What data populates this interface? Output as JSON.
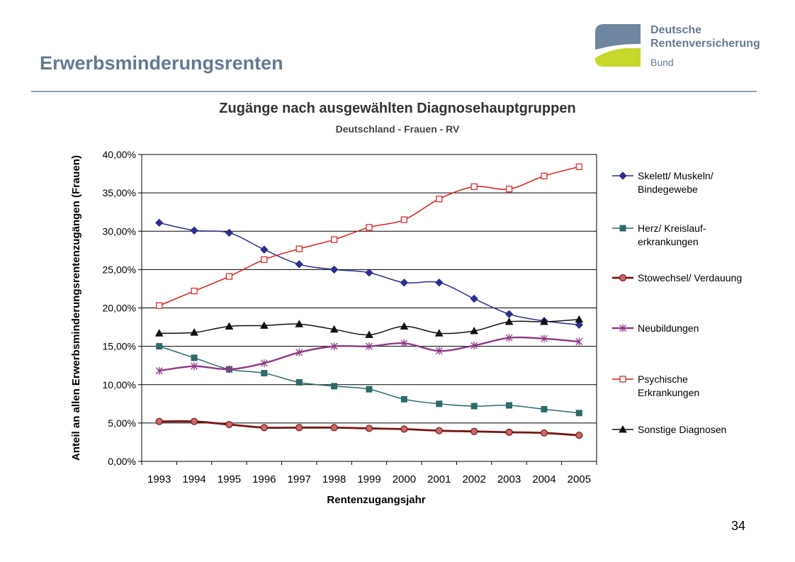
{
  "slide": {
    "title": "Erwerbsminderungsrenten",
    "page_number": "34"
  },
  "logo": {
    "line1": "Deutsche",
    "line2": "Rentenversicherung",
    "line3": "Bund",
    "colors": {
      "blue": "#6e86a0",
      "green": "#c6d82a"
    }
  },
  "chart_data": {
    "type": "line",
    "title": "Zugänge nach ausgewählten Diagnosehauptgruppen",
    "subtitle": "Deutschland - Frauen - RV",
    "xlabel": "Rentenzugangsjahr",
    "ylabel": "Anteil an allen Erwerbsminderungsrentenzugängen (Frauen)",
    "x": [
      "1993",
      "1994",
      "1995",
      "1996",
      "1997",
      "1998",
      "1999",
      "2000",
      "2001",
      "2002",
      "2003",
      "2004",
      "2005"
    ],
    "ylim": [
      0,
      40
    ],
    "yticks": [
      "0,00%",
      "5,00%",
      "10,00%",
      "15,00%",
      "20,00%",
      "25,00%",
      "30,00%",
      "35,00%",
      "40,00%"
    ],
    "grid": true,
    "legend_position": "right",
    "series": [
      {
        "name": "Skelett/ Muskeln/ Bindegewebe",
        "legend_lines": [
          "Skelett/ Muskeln/",
          "Bindegewebe"
        ],
        "color": "#2b2f8e",
        "marker": "diamond",
        "values": [
          31.1,
          30.1,
          29.8,
          27.6,
          25.7,
          25.0,
          24.6,
          23.3,
          23.3,
          21.2,
          19.2,
          18.3,
          17.8
        ]
      },
      {
        "name": "Herz/ Kreislauf-erkrankungen",
        "legend_lines": [
          "Herz/ Kreislauf-",
          "erkrankungen"
        ],
        "color": "#2e6b6b",
        "marker": "square",
        "values": [
          15.0,
          13.5,
          12.0,
          11.5,
          10.3,
          9.8,
          9.4,
          8.1,
          7.5,
          7.2,
          7.3,
          6.8,
          6.3
        ]
      },
      {
        "name": "Stowechsel/ Verdauung",
        "legend_lines": [
          "Stowechsel/ Verdauung"
        ],
        "color": "#7a1414",
        "marker": "circle",
        "values": [
          5.2,
          5.2,
          4.8,
          4.4,
          4.4,
          4.4,
          4.3,
          4.2,
          4.0,
          3.9,
          3.8,
          3.7,
          3.4
        ]
      },
      {
        "name": "Neubildungen",
        "legend_lines": [
          "Neubildungen"
        ],
        "color": "#8e3a86",
        "marker": "star",
        "values": [
          11.8,
          12.4,
          12.0,
          12.8,
          14.2,
          15.0,
          15.0,
          15.4,
          14.4,
          15.1,
          16.1,
          16.0,
          15.6
        ]
      },
      {
        "name": "Psychische Erkrankungen",
        "legend_lines": [
          "Psychische",
          "Erkrankungen"
        ],
        "color": "#e01b1b",
        "marker": "open-square",
        "values": [
          20.3,
          22.2,
          24.1,
          26.3,
          27.7,
          28.9,
          30.5,
          31.5,
          34.2,
          35.8,
          35.5,
          37.2,
          38.4
        ]
      },
      {
        "name": "Sonstige Diagnosen",
        "legend_lines": [
          "Sonstige Diagnosen"
        ],
        "color": "#111111",
        "marker": "triangle",
        "values": [
          16.7,
          16.8,
          17.6,
          17.7,
          17.9,
          17.2,
          16.5,
          17.6,
          16.7,
          17.0,
          18.2,
          18.2,
          18.5
        ]
      }
    ]
  }
}
